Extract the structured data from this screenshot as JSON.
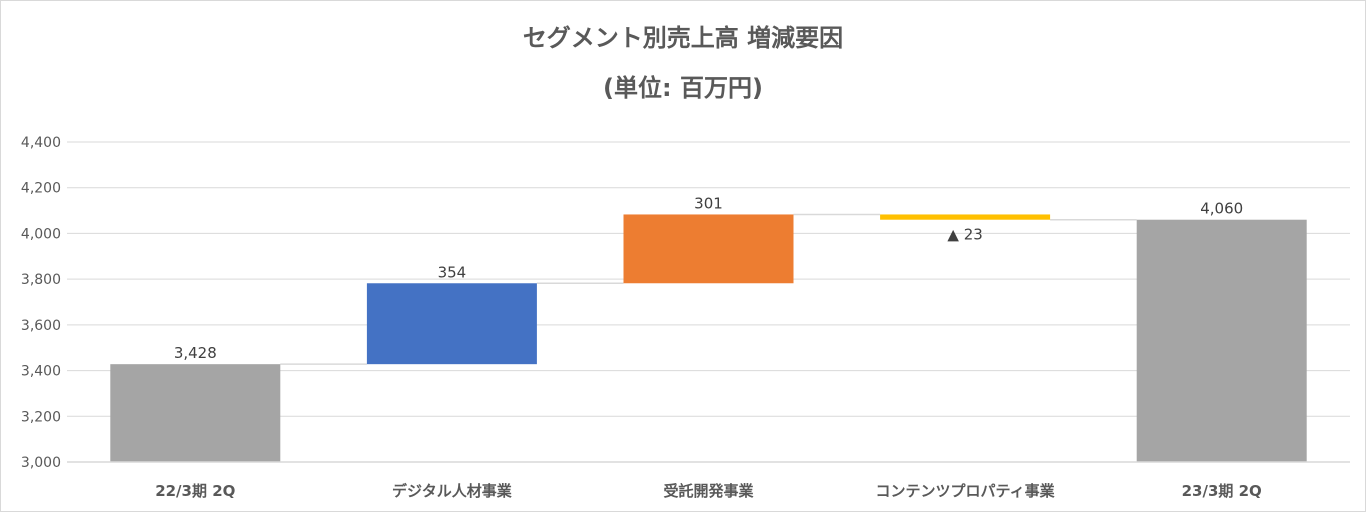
{
  "chart_data": {
    "type": "bar",
    "subtype": "waterfall",
    "title": "セグメント別売上高 増減要因",
    "subtitle": "(単位: 百万円)",
    "categories": [
      "22/3期 2Q",
      "デジタル人材事業",
      "受託開発事業",
      "コンテンツプロパティ事業",
      "23/3期 2Q"
    ],
    "bars": [
      {
        "label": "3,428",
        "start": 3000,
        "end": 3428,
        "color": "#a5a5a5"
      },
      {
        "label": "354",
        "start": 3428,
        "end": 3782,
        "color": "#4472c4"
      },
      {
        "label": "301",
        "start": 3782,
        "end": 4083,
        "color": "#ed7d31"
      },
      {
        "label": "▲ 23",
        "start": 4083,
        "end": 4060,
        "color": "#ffc000"
      },
      {
        "label": "4,060",
        "start": 3000,
        "end": 4060,
        "color": "#a5a5a5"
      }
    ],
    "ylim": [
      3000,
      4400
    ],
    "yticks": [
      3000,
      3200,
      3400,
      3600,
      3800,
      4000,
      4200,
      4400
    ],
    "ytick_labels": [
      "3,000",
      "3,200",
      "3,400",
      "3,600",
      "3,800",
      "4,000",
      "4,200",
      "4,400"
    ],
    "grid": true,
    "gridline_color": "#d9d9d9"
  }
}
